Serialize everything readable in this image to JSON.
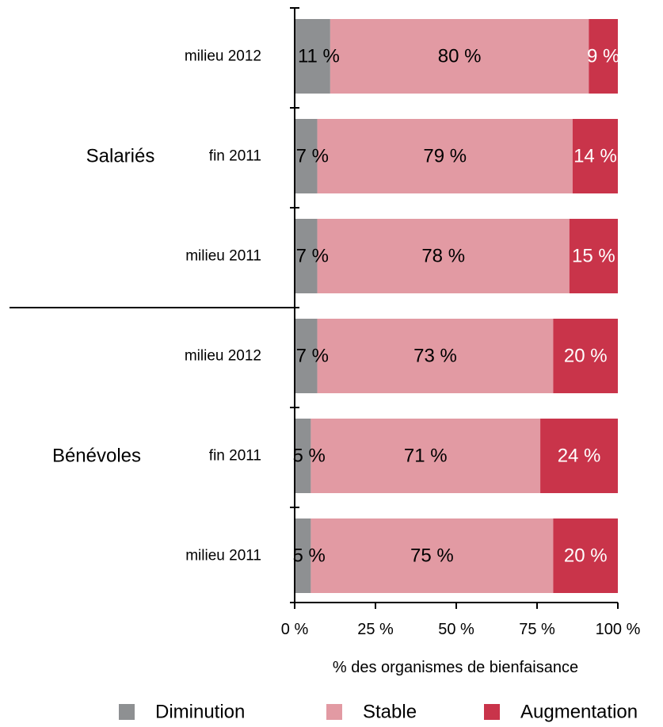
{
  "chart_data": {
    "type": "bar",
    "orientation": "horizontal",
    "stacked": true,
    "xlabel": "% des organismes de bienfaisance",
    "xlim": [
      0,
      100
    ],
    "x_ticks": [
      "0 %",
      "25 %",
      "50 %",
      "75 %",
      "100 %"
    ],
    "groups": [
      {
        "label": "Salariés",
        "rows": [
          0,
          1,
          2
        ]
      },
      {
        "label": "Bénévoles",
        "rows": [
          3,
          4,
          5
        ]
      }
    ],
    "categories": [
      "milieu 2012",
      "fin 2011",
      "milieu 2011",
      "milieu 2012",
      "fin 2011",
      "milieu 2011"
    ],
    "series": [
      {
        "name": "Diminution",
        "color": "#8e9092",
        "label_color": "#000000",
        "values": [
          11,
          7,
          7,
          7,
          5,
          5
        ],
        "labels": [
          "11 %",
          "7 %",
          "7 %",
          "7 %",
          "5 %",
          "5 %"
        ]
      },
      {
        "name": "Stable",
        "color": "#e29aa3",
        "label_color": "#000000",
        "values": [
          80,
          79,
          78,
          73,
          71,
          75
        ],
        "labels": [
          "80 %",
          "79 %",
          "78 %",
          "73 %",
          "71 %",
          "75 %"
        ]
      },
      {
        "name": "Augmentation",
        "color": "#c9344a",
        "label_color": "#ffffff",
        "values": [
          9,
          14,
          15,
          20,
          24,
          20
        ],
        "labels": [
          "9 %",
          "14 %",
          "15 %",
          "20 %",
          "24 %",
          "20 %"
        ]
      }
    ],
    "legend_position": "bottom"
  }
}
